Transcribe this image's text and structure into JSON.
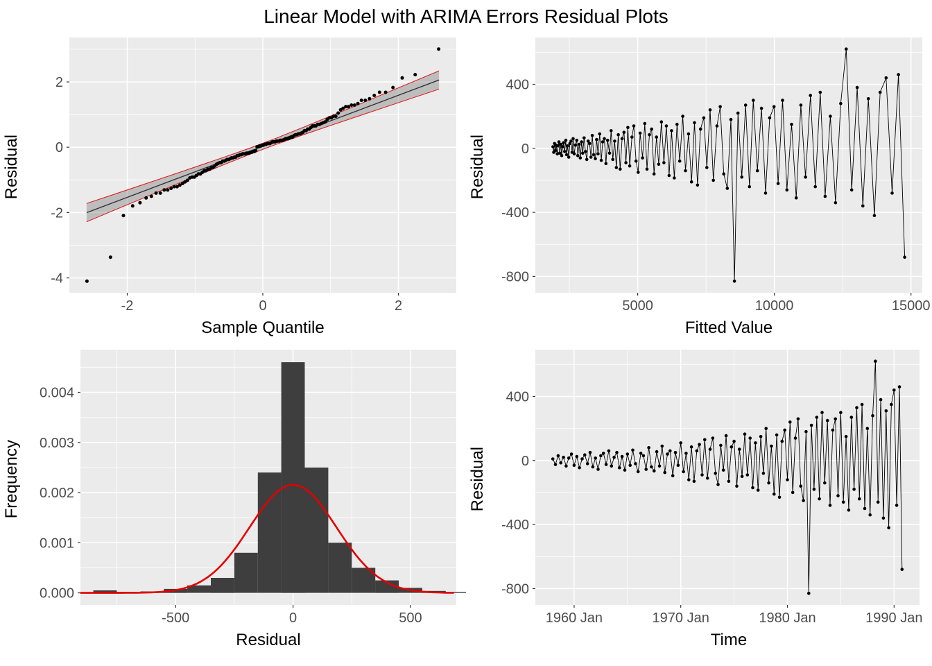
{
  "title": "Linear Model with ARIMA Errors Residual Plots",
  "colors": {
    "panel_bg": "#EBEBEB",
    "grid": "#FFFFFF",
    "tick_text": "#4D4D4D",
    "axis_text": "#000000",
    "point": "#000000",
    "bar": "#3E3E3E",
    "curve": "#E30000",
    "band_edge": "#E02020",
    "band_fill": "rgba(120,120,120,0.4)",
    "qq_line": "#333333"
  },
  "residual_series": {
    "time_start": 1958,
    "time_step": 0.25,
    "residual": [
      10,
      -25,
      30,
      -15,
      20,
      -35,
      15,
      40,
      -30,
      25,
      -45,
      10,
      35,
      -20,
      50,
      -40,
      15,
      -55,
      30,
      45,
      -25,
      60,
      -35,
      20,
      50,
      -45,
      25,
      -60,
      40,
      -30,
      65,
      -20,
      -70,
      45,
      30,
      -55,
      80,
      -40,
      -65,
      55,
      -35,
      90,
      -75,
      40,
      60,
      -95,
      50,
      -30,
      110,
      -70,
      45,
      -120,
      85,
      -130,
      60,
      100,
      -90,
      130,
      -110,
      70,
      140,
      -80,
      -150,
      95,
      -60,
      155,
      -130,
      85,
      120,
      -160,
      70,
      -100,
      165,
      -90,
      140,
      -170,
      110,
      -185,
      150,
      -80,
      200,
      -140,
      90,
      -210,
      160,
      -230,
      120,
      190,
      -120,
      240,
      -200,
      140,
      260,
      -160,
      -250,
      180,
      -830,
      220,
      -180,
      270,
      -240,
      300,
      -140,
      250,
      -280,
      190,
      260,
      -220,
      300,
      -260,
      150,
      -310,
      270,
      -180,
      330,
      -240,
      350,
      -300,
      200,
      -340,
      280,
      620,
      -260,
      380,
      -360,
      310,
      -420,
      350,
      440,
      -280,
      460,
      -680
    ],
    "fitted": [
      1900,
      1930,
      1960,
      1990,
      2020,
      2060,
      2090,
      2120,
      2150,
      2190,
      2220,
      2260,
      2290,
      2330,
      2370,
      2400,
      2440,
      2480,
      2520,
      2560,
      2600,
      2640,
      2680,
      2720,
      2770,
      2810,
      2860,
      2900,
      2950,
      2990,
      3040,
      3090,
      3140,
      3190,
      3240,
      3290,
      3340,
      3390,
      3450,
      3500,
      3550,
      3610,
      3670,
      3720,
      3780,
      3840,
      3900,
      3970,
      4030,
      4090,
      4160,
      4220,
      4290,
      4360,
      4430,
      4500,
      4570,
      4640,
      4710,
      4790,
      4860,
      4940,
      5020,
      5090,
      5180,
      5260,
      5340,
      5430,
      5510,
      5600,
      5690,
      5770,
      5870,
      5960,
      6050,
      6150,
      6240,
      6340,
      6440,
      6540,
      6650,
      6750,
      6860,
      6970,
      7080,
      7190,
      7300,
      7420,
      7530,
      7650,
      7770,
      7900,
      8020,
      8150,
      8280,
      8410,
      8540,
      8670,
      8810,
      8950,
      9090,
      9230,
      9380,
      9530,
      9680,
      9830,
      9990,
      10140,
      10300,
      10460,
      10630,
      10800,
      10970,
      11140,
      11320,
      11500,
      11680,
      11860,
      12050,
      12240,
      12430,
      12630,
      12830,
      13030,
      13240,
      13440,
      13660,
      13870,
      14090,
      14310,
      14540,
      14770
    ]
  },
  "chart_data": [
    {
      "type": "scatter",
      "name": "qq-plot",
      "xlabel": "Sample Quantile",
      "ylabel": "Residual",
      "description": "Normal Q-Q plot of standardized residuals with reference line and confidence band",
      "xticks": {
        "values": [
          -2,
          0,
          2
        ],
        "labels": [
          "-2",
          "0",
          "2"
        ]
      },
      "yticks": {
        "values": [
          -4,
          -2,
          0,
          2
        ],
        "labels": [
          "-4",
          "-2",
          "0",
          "2"
        ]
      },
      "xminor": [
        -3,
        -1,
        1,
        3
      ],
      "yminor": [
        -5,
        -3,
        -1,
        1,
        3
      ],
      "points_source": "residual_series.residual standardized and sorted vs normal quantiles",
      "point_extremes": {
        "min_y": -4.5,
        "max_y": 3.4
      },
      "band": {
        "x": [
          -2.6,
          -2.2,
          -1.8,
          -1.4,
          -1.0,
          -0.6,
          -0.2,
          0.2,
          0.6,
          1.0,
          1.4,
          1.8,
          2.2,
          2.6
        ],
        "halfwidth": [
          0.28,
          0.245,
          0.21,
          0.175,
          0.145,
          0.115,
          0.095,
          0.095,
          0.115,
          0.145,
          0.175,
          0.21,
          0.245,
          0.28
        ]
      }
    },
    {
      "type": "line",
      "name": "residual-vs-fitted",
      "xlabel": "Fitted Value",
      "ylabel": "Residual",
      "x_source": "residual_series.fitted",
      "y_source": "residual_series.residual",
      "xticks": {
        "values": [
          5000,
          10000,
          15000
        ],
        "labels": [
          "5000",
          "10000",
          "15000"
        ]
      },
      "yticks": {
        "values": [
          -800,
          -400,
          0,
          400
        ],
        "labels": [
          "-800",
          "-400",
          "0",
          "400"
        ]
      },
      "xminor": [
        2500,
        7500,
        12500
      ],
      "yminor": [
        -600,
        -200,
        200,
        600
      ]
    },
    {
      "type": "bar",
      "name": "residual-histogram",
      "xlabel": "Residual",
      "ylabel": "Frequency",
      "bin_width": 100,
      "bin_centers": [
        -800,
        -700,
        -600,
        -500,
        -400,
        -300,
        -200,
        -100,
        0,
        100,
        200,
        300,
        400,
        500,
        600,
        700
      ],
      "densities": [
        5e-05,
        2e-05,
        3e-05,
        8e-05,
        0.00015,
        0.0003,
        0.0008,
        0.0024,
        0.0046,
        0.0025,
        0.001,
        0.0005,
        0.00025,
        0.0001,
        4e-05,
        2e-05
      ],
      "normal_curve": {
        "mean": 0,
        "sd": 185,
        "peak": 0.00215
      },
      "xlim": [
        -905,
        695
      ],
      "ylim": [
        -0.00024,
        0.00485
      ],
      "xticks": {
        "values": [
          -500,
          0,
          500
        ],
        "labels": [
          "-500",
          "0",
          "500"
        ]
      },
      "yticks": {
        "values": [
          0,
          0.001,
          0.002,
          0.003,
          0.004
        ],
        "labels": [
          "0.000",
          "0.001",
          "0.002",
          "0.003",
          "0.004"
        ]
      },
      "xminor": [
        -750,
        -250,
        250,
        750
      ],
      "yminor": [
        0.0005,
        0.0015,
        0.0025,
        0.0035,
        0.0045
      ]
    },
    {
      "type": "line",
      "name": "residual-vs-time",
      "xlabel": "Time",
      "ylabel": "Residual",
      "x_source": "residual_series time (monthly/quarterly index from 1958 to 1990.75)",
      "y_source": "residual_series.residual",
      "xticks": {
        "values": [
          1960,
          1970,
          1980,
          1990
        ],
        "labels": [
          "1960 Jan",
          "1970 Jan",
          "1980 Jan",
          "1990 Jan"
        ]
      },
      "yticks": {
        "values": [
          -800,
          -400,
          0,
          400
        ],
        "labels": [
          "-800",
          "-400",
          "0",
          "400"
        ]
      },
      "xminor": [
        1955,
        1965,
        1975,
        1985
      ],
      "yminor": [
        -600,
        -200,
        200,
        600
      ]
    }
  ]
}
